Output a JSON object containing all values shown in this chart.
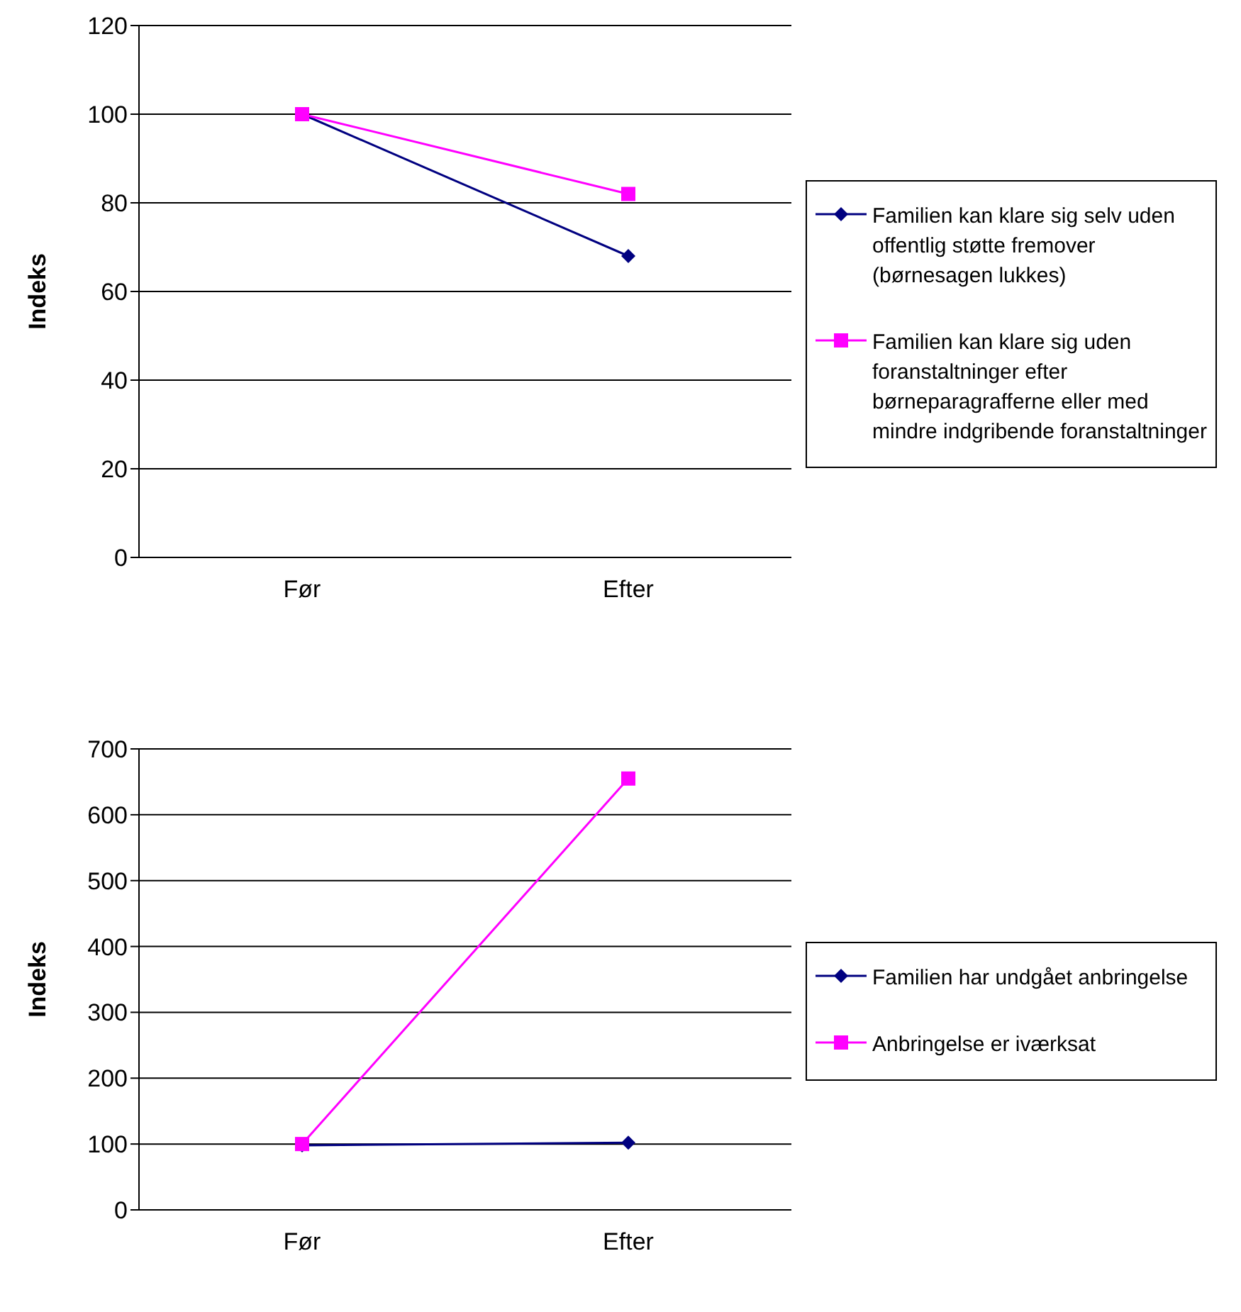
{
  "chart_data": [
    {
      "type": "line",
      "ylabel": "Indeks",
      "categories": [
        "Før",
        "Efter"
      ],
      "ylim": [
        0,
        120
      ],
      "yticks": [
        0,
        20,
        40,
        60,
        80,
        100,
        120
      ],
      "grid": "y",
      "legend": "right",
      "series": [
        {
          "name": "Familien kan klare sig selv uden offentlig støtte fremover (børnesagen lukkes)",
          "color": "#000080",
          "marker": "diamond",
          "values": [
            100,
            68
          ]
        },
        {
          "name": "Familien kan klare sig uden foranstaltninger efter børneparagrafferne eller med mindre indgribende foranstaltninger",
          "color": "#ff00ff",
          "marker": "square",
          "values": [
            100,
            82
          ]
        }
      ]
    },
    {
      "type": "line",
      "ylabel": "Indeks",
      "categories": [
        "Før",
        "Efter"
      ],
      "ylim": [
        0,
        700
      ],
      "yticks": [
        0,
        100,
        200,
        300,
        400,
        500,
        600,
        700
      ],
      "grid": "y",
      "legend": "right",
      "series": [
        {
          "name": "Familien har undgået anbringelse",
          "color": "#000080",
          "marker": "diamond",
          "values": [
            98,
            102
          ]
        },
        {
          "name": "Anbringelse er iværksat",
          "color": "#ff00ff",
          "marker": "square",
          "values": [
            100,
            655
          ]
        }
      ]
    }
  ]
}
